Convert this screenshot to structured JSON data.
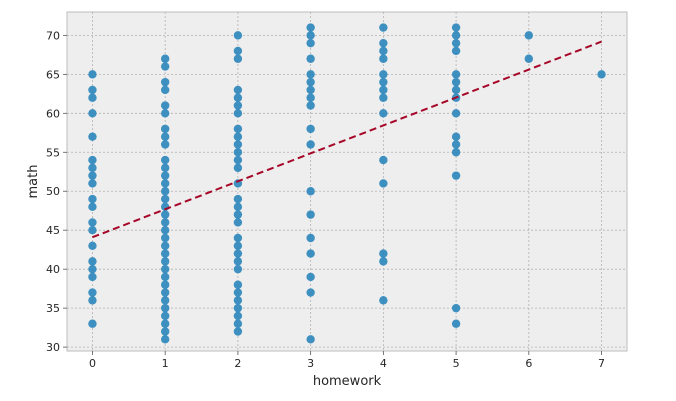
{
  "chart_data": {
    "type": "scatter",
    "title": "",
    "xlabel": "homework",
    "ylabel": "math",
    "xlim": [
      -0.35,
      7.35
    ],
    "ylim": [
      29.5,
      73
    ],
    "xticks": [
      0,
      1,
      2,
      3,
      4,
      5,
      6,
      7
    ],
    "yticks": [
      30,
      35,
      40,
      45,
      50,
      55,
      60,
      65,
      70
    ],
    "grid": true,
    "colors": {
      "points": "#348ABD",
      "fit_line": "#A60628",
      "background": "#EEEEEE",
      "grid": "#B2B2B2"
    },
    "points": [
      {
        "x": 0,
        "y": 65
      },
      {
        "x": 0,
        "y": 63
      },
      {
        "x": 0,
        "y": 62
      },
      {
        "x": 0,
        "y": 60
      },
      {
        "x": 0,
        "y": 57
      },
      {
        "x": 0,
        "y": 54
      },
      {
        "x": 0,
        "y": 53
      },
      {
        "x": 0,
        "y": 52
      },
      {
        "x": 0,
        "y": 51
      },
      {
        "x": 0,
        "y": 49
      },
      {
        "x": 0,
        "y": 48
      },
      {
        "x": 0,
        "y": 46
      },
      {
        "x": 0,
        "y": 45
      },
      {
        "x": 0,
        "y": 43
      },
      {
        "x": 0,
        "y": 41
      },
      {
        "x": 0,
        "y": 40
      },
      {
        "x": 0,
        "y": 39
      },
      {
        "x": 0,
        "y": 37
      },
      {
        "x": 0,
        "y": 36
      },
      {
        "x": 0,
        "y": 33
      },
      {
        "x": 1,
        "y": 67
      },
      {
        "x": 1,
        "y": 66
      },
      {
        "x": 1,
        "y": 64
      },
      {
        "x": 1,
        "y": 63
      },
      {
        "x": 1,
        "y": 61
      },
      {
        "x": 1,
        "y": 60
      },
      {
        "x": 1,
        "y": 58
      },
      {
        "x": 1,
        "y": 57
      },
      {
        "x": 1,
        "y": 56
      },
      {
        "x": 1,
        "y": 54
      },
      {
        "x": 1,
        "y": 53
      },
      {
        "x": 1,
        "y": 52
      },
      {
        "x": 1,
        "y": 51
      },
      {
        "x": 1,
        "y": 50
      },
      {
        "x": 1,
        "y": 49
      },
      {
        "x": 1,
        "y": 48
      },
      {
        "x": 1,
        "y": 47
      },
      {
        "x": 1,
        "y": 46
      },
      {
        "x": 1,
        "y": 45
      },
      {
        "x": 1,
        "y": 44
      },
      {
        "x": 1,
        "y": 43
      },
      {
        "x": 1,
        "y": 42
      },
      {
        "x": 1,
        "y": 41
      },
      {
        "x": 1,
        "y": 40
      },
      {
        "x": 1,
        "y": 39
      },
      {
        "x": 1,
        "y": 38
      },
      {
        "x": 1,
        "y": 37
      },
      {
        "x": 1,
        "y": 36
      },
      {
        "x": 1,
        "y": 35
      },
      {
        "x": 1,
        "y": 34
      },
      {
        "x": 1,
        "y": 33
      },
      {
        "x": 1,
        "y": 32
      },
      {
        "x": 1,
        "y": 31
      },
      {
        "x": 2,
        "y": 70
      },
      {
        "x": 2,
        "y": 68
      },
      {
        "x": 2,
        "y": 67
      },
      {
        "x": 2,
        "y": 63
      },
      {
        "x": 2,
        "y": 62
      },
      {
        "x": 2,
        "y": 61
      },
      {
        "x": 2,
        "y": 60
      },
      {
        "x": 2,
        "y": 58
      },
      {
        "x": 2,
        "y": 57
      },
      {
        "x": 2,
        "y": 56
      },
      {
        "x": 2,
        "y": 55
      },
      {
        "x": 2,
        "y": 54
      },
      {
        "x": 2,
        "y": 53
      },
      {
        "x": 2,
        "y": 51
      },
      {
        "x": 2,
        "y": 49
      },
      {
        "x": 2,
        "y": 48
      },
      {
        "x": 2,
        "y": 47
      },
      {
        "x": 2,
        "y": 46
      },
      {
        "x": 2,
        "y": 44
      },
      {
        "x": 2,
        "y": 43
      },
      {
        "x": 2,
        "y": 42
      },
      {
        "x": 2,
        "y": 41
      },
      {
        "x": 2,
        "y": 40
      },
      {
        "x": 2,
        "y": 38
      },
      {
        "x": 2,
        "y": 37
      },
      {
        "x": 2,
        "y": 36
      },
      {
        "x": 2,
        "y": 35
      },
      {
        "x": 2,
        "y": 34
      },
      {
        "x": 2,
        "y": 33
      },
      {
        "x": 2,
        "y": 32
      },
      {
        "x": 3,
        "y": 71
      },
      {
        "x": 3,
        "y": 70
      },
      {
        "x": 3,
        "y": 69
      },
      {
        "x": 3,
        "y": 67
      },
      {
        "x": 3,
        "y": 65
      },
      {
        "x": 3,
        "y": 64
      },
      {
        "x": 3,
        "y": 63
      },
      {
        "x": 3,
        "y": 62
      },
      {
        "x": 3,
        "y": 61
      },
      {
        "x": 3,
        "y": 58
      },
      {
        "x": 3,
        "y": 56
      },
      {
        "x": 3,
        "y": 50
      },
      {
        "x": 3,
        "y": 47
      },
      {
        "x": 3,
        "y": 44
      },
      {
        "x": 3,
        "y": 42
      },
      {
        "x": 3,
        "y": 39
      },
      {
        "x": 3,
        "y": 37
      },
      {
        "x": 3,
        "y": 31
      },
      {
        "x": 4,
        "y": 71
      },
      {
        "x": 4,
        "y": 69
      },
      {
        "x": 4,
        "y": 68
      },
      {
        "x": 4,
        "y": 67
      },
      {
        "x": 4,
        "y": 65
      },
      {
        "x": 4,
        "y": 64
      },
      {
        "x": 4,
        "y": 63
      },
      {
        "x": 4,
        "y": 62
      },
      {
        "x": 4,
        "y": 60
      },
      {
        "x": 4,
        "y": 54
      },
      {
        "x": 4,
        "y": 51
      },
      {
        "x": 4,
        "y": 42
      },
      {
        "x": 4,
        "y": 41
      },
      {
        "x": 4,
        "y": 36
      },
      {
        "x": 5,
        "y": 71
      },
      {
        "x": 5,
        "y": 70
      },
      {
        "x": 5,
        "y": 69
      },
      {
        "x": 5,
        "y": 68
      },
      {
        "x": 5,
        "y": 65
      },
      {
        "x": 5,
        "y": 64
      },
      {
        "x": 5,
        "y": 63
      },
      {
        "x": 5,
        "y": 62
      },
      {
        "x": 5,
        "y": 60
      },
      {
        "x": 5,
        "y": 57
      },
      {
        "x": 5,
        "y": 56
      },
      {
        "x": 5,
        "y": 55
      },
      {
        "x": 5,
        "y": 52
      },
      {
        "x": 5,
        "y": 35
      },
      {
        "x": 5,
        "y": 33
      },
      {
        "x": 6,
        "y": 70
      },
      {
        "x": 6,
        "y": 67
      },
      {
        "x": 7,
        "y": 65
      }
    ],
    "fit_line": {
      "x": [
        0,
        7
      ],
      "y": [
        44.1,
        69.2
      ]
    }
  }
}
